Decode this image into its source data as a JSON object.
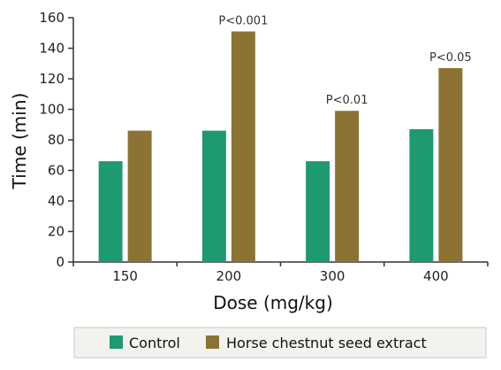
{
  "colors": {
    "control": "#1E9A72",
    "extract": "#8C7333",
    "axis": "#333333",
    "legend_bg": "#F2F2EF",
    "legend_border": "#C8C8C4"
  },
  "chart_data": {
    "type": "bar",
    "title": "",
    "xlabel": "Dose (mg/kg)",
    "ylabel": "Time (min)",
    "ylim": [
      0,
      160
    ],
    "yticks": [
      0,
      20,
      40,
      60,
      80,
      100,
      120,
      140,
      160
    ],
    "grid": false,
    "legend_position": "bottom",
    "categories": [
      "150",
      "200",
      "300",
      "400"
    ],
    "series": [
      {
        "name": "Control",
        "values": [
          66,
          86,
          66,
          87
        ]
      },
      {
        "name": "Horse chestnut seed extract",
        "values": [
          86,
          151,
          99,
          127
        ]
      }
    ],
    "annotations": [
      "",
      "P<0.001",
      "P<0.01",
      "P<0.05"
    ]
  }
}
